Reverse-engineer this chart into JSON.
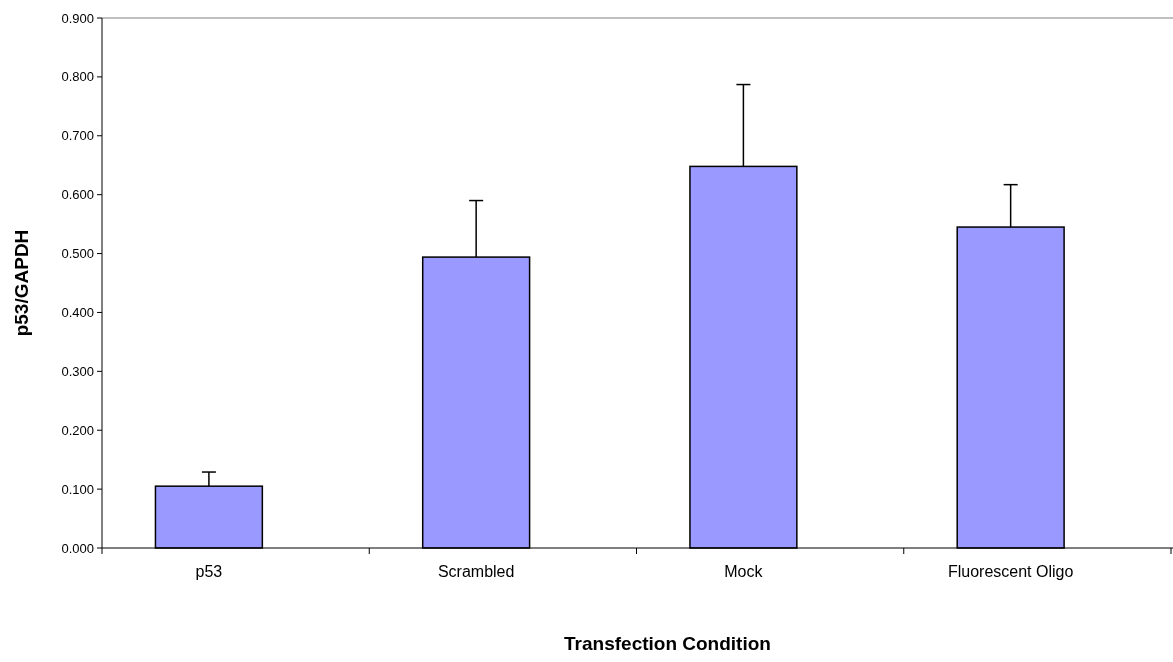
{
  "chart_data": {
    "type": "bar",
    "xlabel": "Transfection Condition",
    "ylabel": "p53/GAPDH",
    "categories": [
      "p53",
      "Scrambled",
      "Mock",
      "Fluorescent Oligo"
    ],
    "values": [
      0.105,
      0.494,
      0.648,
      0.545
    ],
    "errors": [
      [
        0.105,
        0.129
      ],
      [
        0.494,
        0.59
      ],
      [
        0.648,
        0.787
      ],
      [
        0.545,
        0.617
      ]
    ],
    "color": "#9999ff",
    "ylim": [
      0,
      0.9
    ],
    "yticks": [
      {
        "value": 0,
        "label": "0.000"
      },
      {
        "value": 0.1,
        "label": "0.100"
      },
      {
        "value": 0.2,
        "label": "0.200"
      },
      {
        "value": 0.3,
        "label": "0.300"
      },
      {
        "value": 0.4,
        "label": "0.400"
      },
      {
        "value": 0.5,
        "label": "0.500"
      },
      {
        "value": 0.6,
        "label": "0.600"
      },
      {
        "value": 0.7,
        "label": "0.700"
      },
      {
        "value": 0.8,
        "label": "0.800"
      },
      {
        "value": 0.9,
        "label": "0.900"
      }
    ],
    "grid": false
  }
}
